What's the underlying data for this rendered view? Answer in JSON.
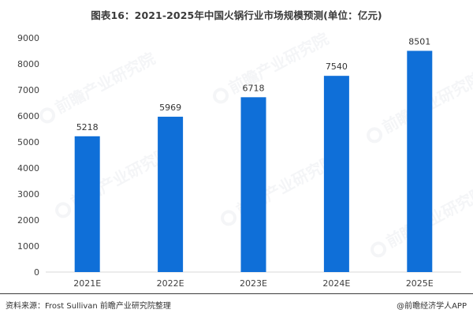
{
  "title": "图表16：2021-2025年中国火锅行业市场规模预测(单位：亿元)",
  "footer": {
    "source": "资料来源：Frost Sullivan 前瞻产业研究院整理",
    "credit": "@前瞻经济学人APP"
  },
  "watermark": {
    "text": "前瞻产业研究院",
    "icon": "circle-logo-icon"
  },
  "colors": {
    "bar": "#0f6fd8",
    "axis": "#d9d9d9"
  },
  "chart_data": {
    "type": "bar",
    "categories": [
      "2021E",
      "2022E",
      "2023E",
      "2024E",
      "2025E"
    ],
    "values": [
      5218,
      5969,
      6718,
      7540,
      8501
    ],
    "ylim": [
      0,
      9000
    ],
    "yticks": [
      0,
      1000,
      2000,
      3000,
      4000,
      5000,
      6000,
      7000,
      8000,
      9000
    ],
    "grid": false,
    "data_labels": true
  }
}
